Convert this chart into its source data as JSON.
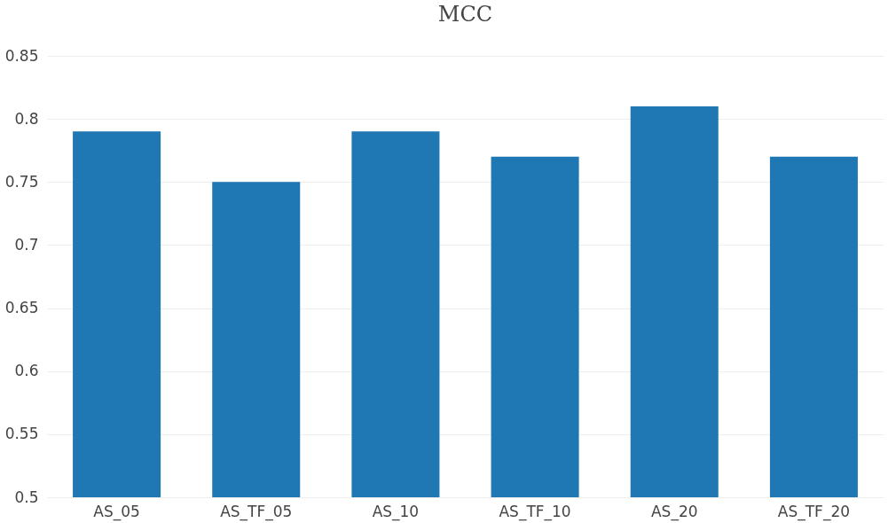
{
  "chart_data": {
    "type": "bar",
    "title": "MCC",
    "categories": [
      "AS_05",
      "AS_TF_05",
      "AS_10",
      "AS_TF_10",
      "AS_20",
      "AS_TF_20"
    ],
    "values": [
      0.79,
      0.75,
      0.79,
      0.77,
      0.81,
      0.77
    ],
    "color": "#1f77b4",
    "ylim": [
      0.5,
      0.85
    ],
    "yticks": [
      0.5,
      0.55,
      0.6,
      0.65,
      0.7,
      0.75,
      0.8,
      0.85
    ],
    "grid": "y"
  }
}
